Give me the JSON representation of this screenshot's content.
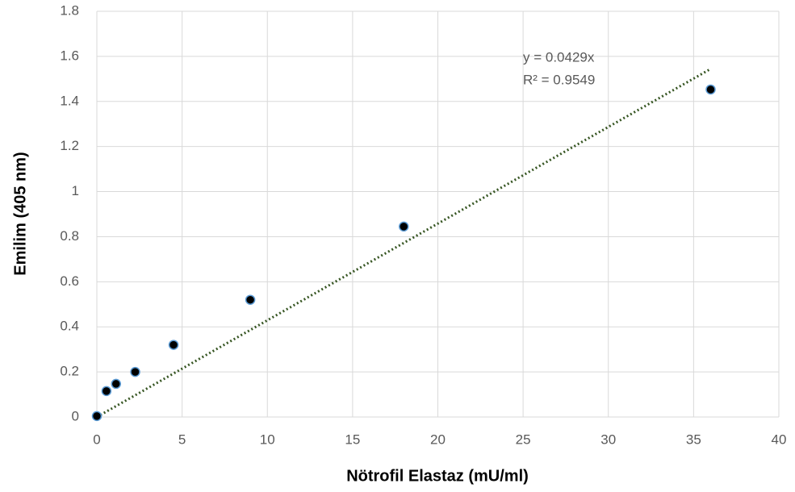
{
  "chart_data": {
    "type": "scatter",
    "x_label": "Nötrofil Elastaz (mU/ml)",
    "y_label": "Emilim (405 nm)",
    "x": [
      0,
      0.5625,
      1.125,
      2.25,
      4.5,
      9,
      18,
      36
    ],
    "values": [
      0.004,
      0.115,
      0.147,
      0.2,
      0.32,
      0.52,
      0.845,
      1.453
    ],
    "color": "#000000",
    "edge_color": "#5b9bd5",
    "xlim": [
      0,
      40
    ],
    "xticks": [
      0,
      5,
      10,
      15,
      20,
      25,
      30,
      35,
      40
    ],
    "ylim": [
      0,
      1.8
    ],
    "yticks": [
      0,
      0.2,
      0.4,
      0.6,
      0.8,
      1,
      1.2,
      1.4,
      1.6,
      1.8
    ],
    "grid": true,
    "trendline": {
      "slope": 0.0429,
      "color": "#375623",
      "equation": "y = 0.0429x",
      "r2": "R² = 0.9549"
    }
  }
}
